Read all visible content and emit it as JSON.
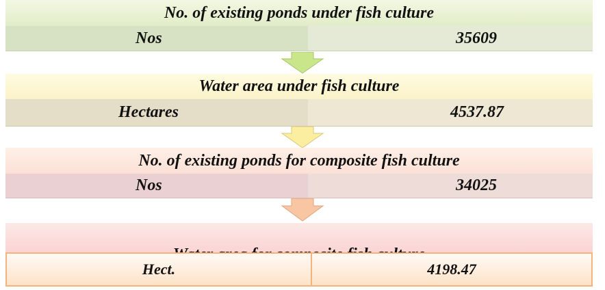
{
  "blocks": [
    {
      "title": "No. of existing ponds under fish culture",
      "unit": "Nos",
      "value": "35609"
    },
    {
      "title": "Water area under fish culture",
      "unit": "Hectares",
      "value": "4537.87"
    },
    {
      "title": "No. of existing ponds for composite fish culture",
      "unit": "Nos",
      "value": "34025"
    },
    {
      "title": "Water area for composite fish culture",
      "unit": "Hect.",
      "value": "4198.47"
    }
  ]
}
